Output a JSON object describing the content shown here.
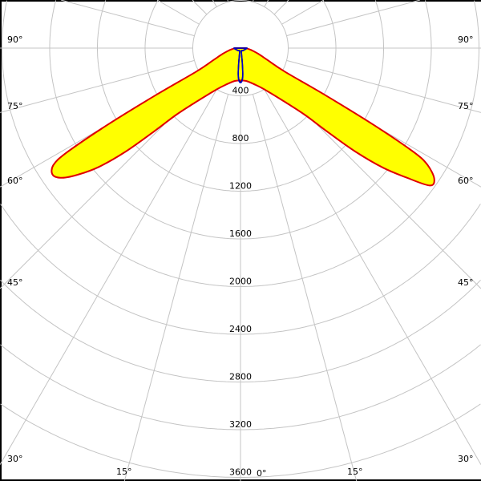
{
  "chart_data": {
    "type": "polar",
    "title": "",
    "radial_unit": "",
    "radial_ticks": [
      400,
      800,
      1200,
      1600,
      2000,
      2400,
      2800,
      3200,
      3600
    ],
    "radial_tick_labels": [
      "400",
      "800",
      "1200",
      "1600",
      "2000",
      "2400",
      "2800",
      "3200",
      "3600"
    ],
    "radial_max": 3600,
    "angle_labels_left": [
      "90°",
      "75°",
      "60°",
      "45°",
      "30°",
      "15°"
    ],
    "angle_labels_right": [
      "90°",
      "75°",
      "60°",
      "45°",
      "30°",
      "15°"
    ],
    "angle_label_zero": "0°",
    "angle_label_values": [
      90,
      75,
      60,
      45,
      30,
      15
    ],
    "spoke_step_deg": 15,
    "grid": true,
    "orientation": "0° pointing down, center at top",
    "series": [
      {
        "color_stroke": "#e00000",
        "color_fill": "#ffff00",
        "angles_deg": [
          0,
          10,
          20,
          30,
          40,
          44,
          46,
          48,
          50,
          52,
          54,
          56,
          58,
          59,
          60,
          61,
          62,
          66,
          72,
          80,
          90
        ],
        "values_left": [
          270,
          280,
          320,
          400,
          600,
          780,
          1000,
          1300,
          1550,
          1720,
          1850,
          1900,
          1850,
          1700,
          1300,
          800,
          420,
          250,
          160,
          90,
          45
        ],
        "values_right": [
          270,
          280,
          320,
          400,
          600,
          780,
          1000,
          1300,
          1560,
          1760,
          1960,
          1960,
          1850,
          1700,
          1300,
          800,
          420,
          250,
          160,
          90,
          45
        ]
      },
      {
        "color_stroke": "#000000",
        "angles_deg": [
          0,
          3,
          5,
          7,
          10,
          20,
          45,
          80,
          90
        ],
        "values_left": [
          285,
          265,
          215,
          115,
          45,
          22,
          28,
          45,
          55
        ],
        "values_right": [
          285,
          265,
          215,
          115,
          45,
          22,
          28,
          45,
          55
        ]
      },
      {
        "color_stroke": "#0000cc",
        "angles_deg": [
          0,
          3,
          5,
          7,
          10,
          20,
          45,
          80,
          90
        ],
        "values_left": [
          290,
          270,
          220,
          120,
          50,
          25,
          30,
          45,
          55
        ],
        "values_right": [
          290,
          272,
          225,
          125,
          52,
          25,
          30,
          45,
          55
        ]
      }
    ]
  }
}
